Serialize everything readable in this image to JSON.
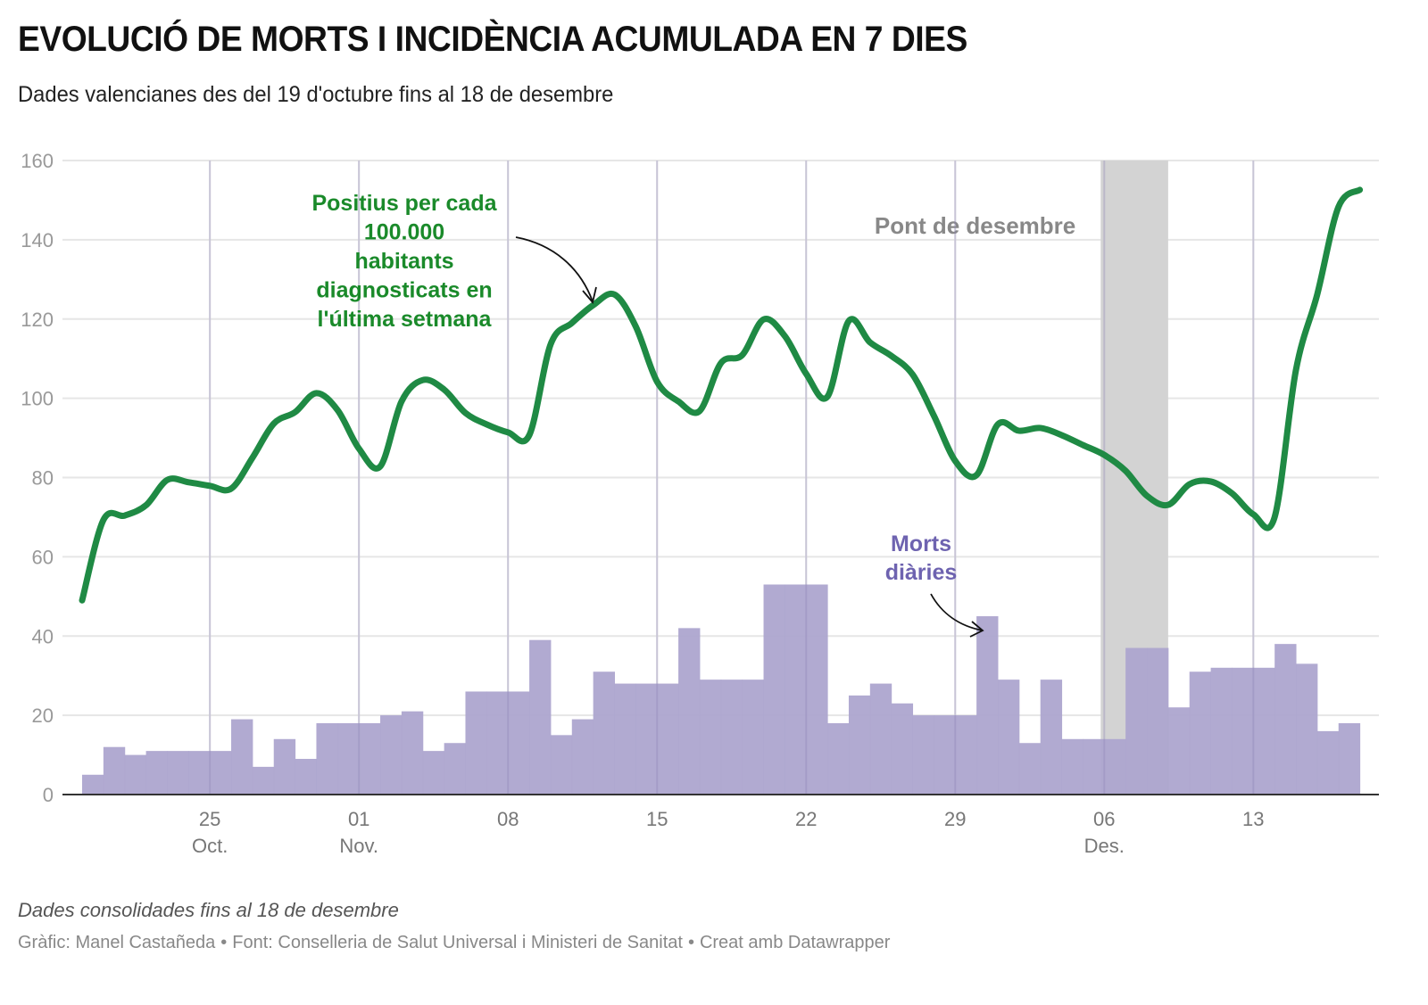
{
  "header": {
    "title": "EVOLUCIÓ DE MORTS I INCIDÈNCIA ACUMULADA EN 7 DIES",
    "subtitle": "Dades valencianes des del 19 d'octubre fins al 18 de desembre"
  },
  "footer": {
    "note": "Dades consolidades fins al 18 de desembre",
    "credit_chart": "Gràfic: Manel Castañeda",
    "credit_source": "Font: Conselleria de Salut Universal i Ministeri de Sanitat",
    "credit_tool": "Creat amb Datawrapper",
    "separator": "•"
  },
  "colors": {
    "incidence_line": "#1f8a44",
    "incidence_label": "#1a8a2a",
    "deaths_fill": "#ada5cf",
    "deaths_label": "#6e63b0",
    "band_fill": "#d3d3d3",
    "band_label": "#888888",
    "grid": "#e6e6e6",
    "axis_text": "#999999"
  },
  "chart_data": {
    "type": "line+bar",
    "title": "EVOLUCIÓ DE MORTS I INCIDÈNCIA ACUMULADA EN 7 DIES",
    "subtitle": "Dades valencianes des del 19 d'octubre fins al 18 de desembre",
    "xlabel": "",
    "ylabel": "",
    "ylim": [
      0,
      160
    ],
    "yticks": [
      0,
      20,
      40,
      60,
      80,
      100,
      120,
      140,
      160
    ],
    "grid": true,
    "x_start_date": "2020-10-19",
    "x_end_date": "2020-12-18",
    "xticks": [
      {
        "date": "2020-10-25",
        "label": "25",
        "month": "Oct."
      },
      {
        "date": "2020-11-01",
        "label": "01",
        "month": "Nov."
      },
      {
        "date": "2020-11-08",
        "label": "08",
        "month": ""
      },
      {
        "date": "2020-11-15",
        "label": "15",
        "month": ""
      },
      {
        "date": "2020-11-22",
        "label": "22",
        "month": ""
      },
      {
        "date": "2020-11-29",
        "label": "29",
        "month": ""
      },
      {
        "date": "2020-12-06",
        "label": "06",
        "month": "Des."
      },
      {
        "date": "2020-12-13",
        "label": "13",
        "month": ""
      }
    ],
    "series": [
      {
        "name": "Positius per cada 100.000 habitants diagnosticats en l'última setmana",
        "type": "line",
        "start_date": "2020-10-19",
        "values": [
          49,
          69.3,
          70.4,
          73,
          79.4,
          78.8,
          77.9,
          77.2,
          85,
          93.6,
          96.5,
          101.3,
          97,
          87.3,
          82.8,
          99.2,
          104.6,
          102.2,
          96.3,
          93.4,
          91.4,
          90.7,
          113.6,
          119,
          123.5,
          126.2,
          118.1,
          104.2,
          99.2,
          96.8,
          108.9,
          110.9,
          119.9,
          115.7,
          106.2,
          100.4,
          119.5,
          114.1,
          110.7,
          106,
          95.6,
          84.2,
          80.6,
          93.4,
          91.8,
          92.5,
          90.7,
          88.2,
          85.7,
          81.7,
          75.4,
          73.1,
          78.3,
          79,
          76,
          70.7,
          70,
          107.1,
          126.2,
          148.3,
          152.6
        ]
      },
      {
        "name": "Morts diàries",
        "type": "bar",
        "start_date": "2020-10-19",
        "values": [
          5,
          12,
          10,
          11,
          11,
          11,
          11,
          19,
          7,
          14,
          9,
          18,
          18,
          18,
          20,
          21,
          11,
          13,
          26,
          26,
          26,
          39,
          15,
          19,
          31,
          28,
          28,
          28,
          42,
          29,
          29,
          29,
          53,
          53,
          53,
          18,
          25,
          28,
          23,
          20,
          20,
          20,
          45,
          29,
          13,
          29,
          14,
          14,
          14,
          37,
          37,
          22,
          31,
          32,
          32,
          32,
          38,
          33,
          16,
          18
        ]
      }
    ],
    "highlight_band": {
      "label": "Pont de desembre",
      "start_date": "2020-12-06",
      "end_date": "2020-12-09"
    },
    "annotations": [
      {
        "id": "incidence",
        "lines": [
          "Positius per cada",
          "100.000",
          "habitants",
          "diagnosticats en",
          "l'última setmana"
        ],
        "points_to_date": "2020-11-12"
      },
      {
        "id": "deaths",
        "lines": [
          "Morts",
          "diàries"
        ],
        "points_to_date": "2020-11-30"
      }
    ]
  }
}
